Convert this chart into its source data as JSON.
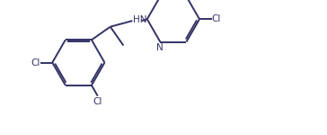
{
  "background_color": "#ffffff",
  "line_color": "#333366",
  "text_color": "#333366",
  "line_width": 1.4,
  "font_size": 7.5,
  "figsize": [
    3.64,
    1.5
  ],
  "dpi": 100,
  "xlim": [
    0,
    100
  ],
  "ylim": [
    0,
    41
  ]
}
